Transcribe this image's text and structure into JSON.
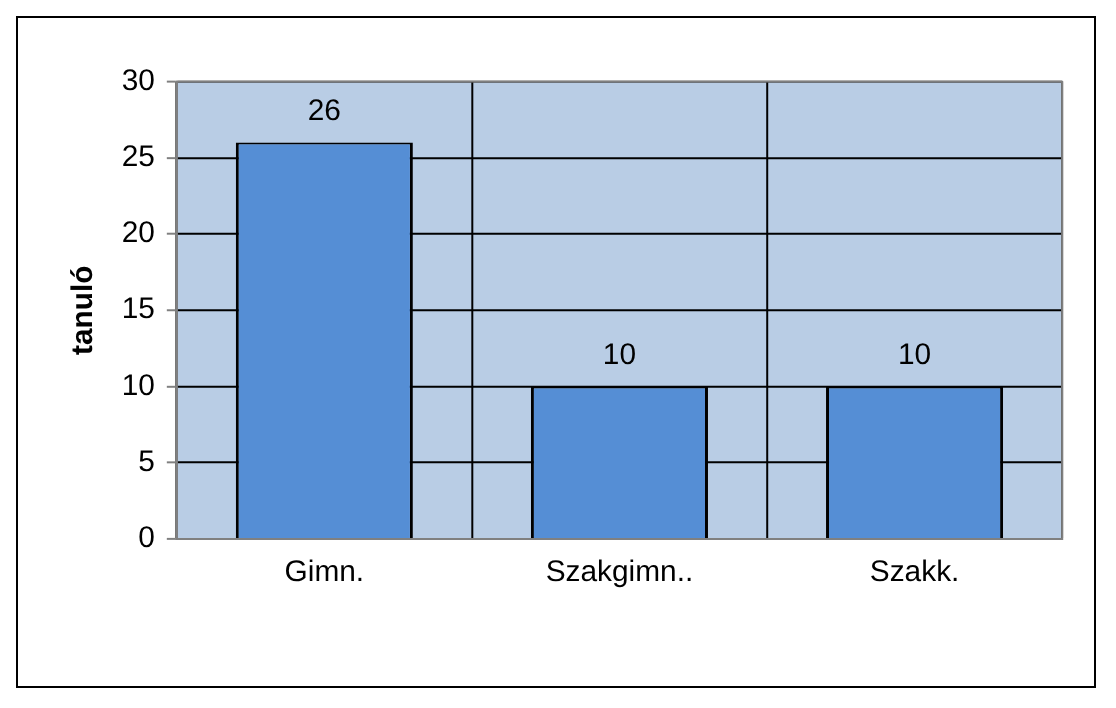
{
  "chart_data": {
    "type": "bar",
    "ylabel": "tanuló",
    "categories": [
      "Gimn.",
      "Szakgimn..",
      "Szakk."
    ],
    "values": [
      26,
      10,
      10
    ],
    "color": "#558ed5",
    "ylim": [
      0,
      30
    ],
    "yticks": [
      0,
      5,
      10,
      15,
      20,
      25,
      30
    ],
    "grid": true,
    "data_labels": true,
    "legend": false
  }
}
